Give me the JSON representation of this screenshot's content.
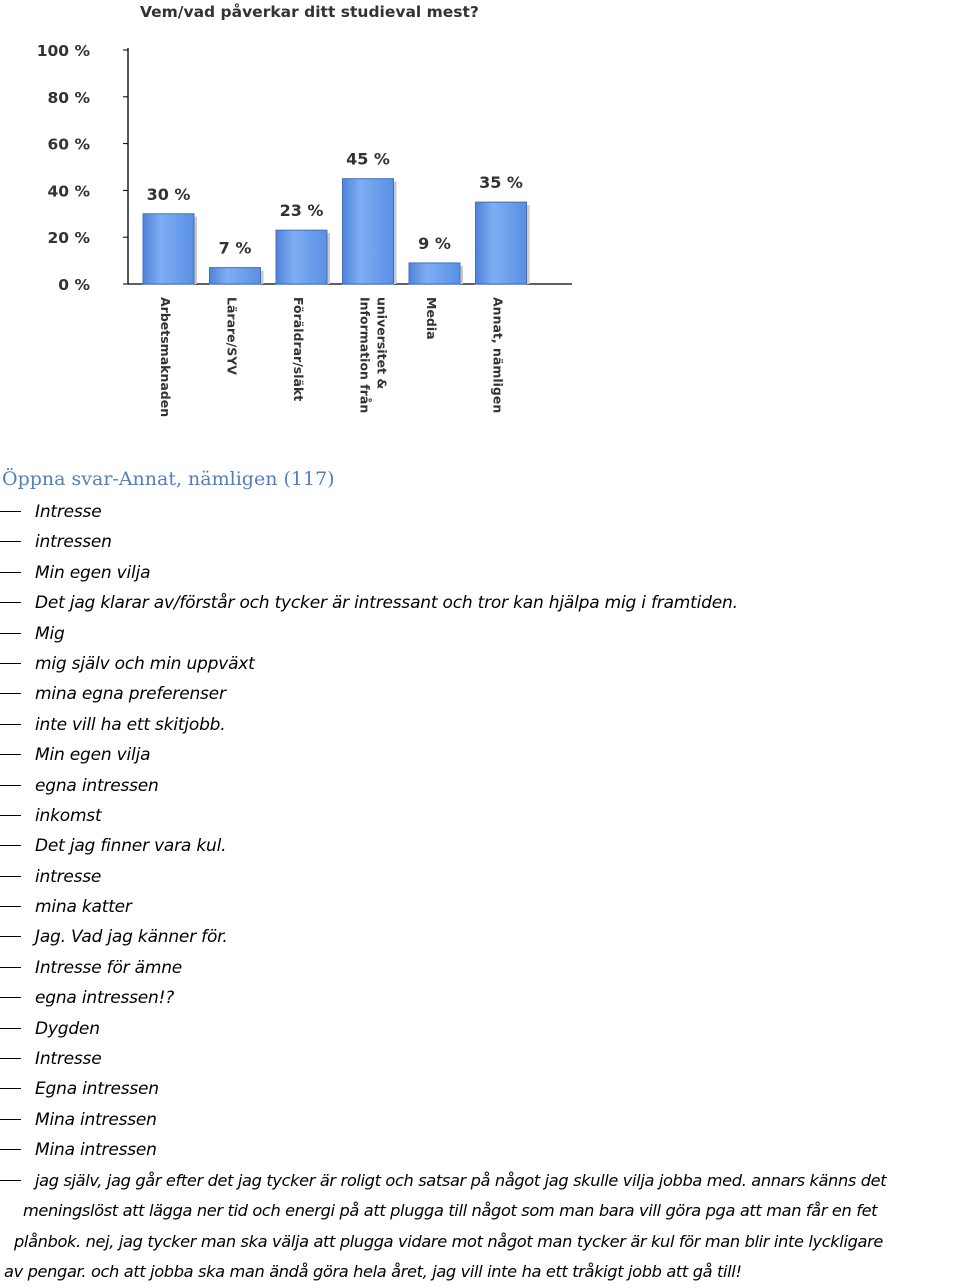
{
  "chart_data": {
    "type": "bar",
    "title": "Vem/vad påverkar ditt studieval mest?",
    "categories": [
      [
        "Arbetsmaknaden"
      ],
      [
        "Lärare/SYV"
      ],
      [
        "Föräldrar/släkt"
      ],
      [
        "Information från",
        "universitet &"
      ],
      [
        "Media"
      ],
      [
        "Annat, nämligen"
      ]
    ],
    "values": [
      30,
      7,
      23,
      45,
      9,
      35
    ],
    "value_labels": [
      "30 %",
      "7 %",
      "23 %",
      "45 %",
      "9 %",
      "35 %"
    ],
    "y_ticks": [
      "0 %",
      "20 %",
      "40 %",
      "60 %",
      "80 %",
      "100 %"
    ],
    "y_tick_values": [
      0,
      20,
      40,
      60,
      80,
      100
    ],
    "ylim": [
      0,
      100
    ],
    "grid": false,
    "bar_color": "#6e9fec",
    "bar_edge_color": "#3f6fc6"
  },
  "open_answers": {
    "heading": "Öppna svar-Annat, nämligen (117)",
    "items": [
      "Intresse",
      "intressen",
      "Min egen vilja",
      "Det jag klarar av/förstår  och tycker är intressant och tror kan hjälpa mig i framtiden.",
      "Mig",
      "mig själv och min uppväxt",
      "mina egna preferenser",
      "inte vill ha ett skitjobb.",
      "Min egen vilja",
      "egna intressen",
      "inkomst",
      "Det jag finner vara kul.",
      "intresse",
      "mina katter",
      "Jag. Vad jag känner för.",
      "Intresse för ämne",
      "egna intressen!?",
      "Dygden",
      "Intresse",
      "Egna intressen",
      "Mina intressen",
      "Mina intressen"
    ],
    "long_answer_lines": [
      "jag själv, jag går efter det jag tycker är roligt och satsar på något jag skulle vilja jobba med. annars känns det",
      "meningslöst att lägga ner tid och energi på att plugga till något som man bara vill göra pga att man får en fet",
      "plånbok. nej, jag tycker man ska välja att plugga vidare mot något man tycker är kul för man blir inte lyckligare",
      "av pengar. och att jobba ska man ändå göra hela året, jag vill inte ha ett tråkigt jobb att gå till!"
    ]
  }
}
